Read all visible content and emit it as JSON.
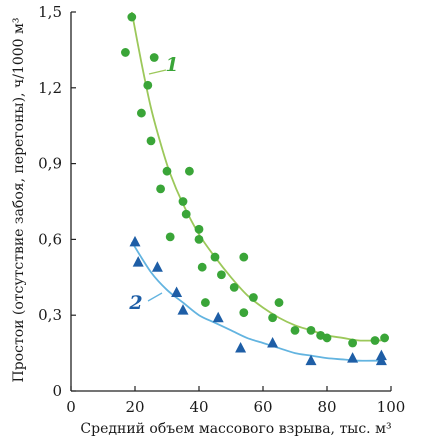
{
  "chart_data": {
    "type": "scatter",
    "title": "",
    "xlabel": "Средний объем массового взрыва, тыс. м³",
    "ylabel": "Простои (отсутствие забоя, перегоны), ч/1000 м³",
    "xlim": [
      0,
      100
    ],
    "ylim": [
      0,
      1.5
    ],
    "x_ticks": [
      "0",
      "20",
      "40",
      "60",
      "80",
      "100"
    ],
    "y_ticks": [
      "0",
      "0,3",
      "0,6",
      "0,9",
      "1,2",
      "1,5"
    ],
    "grid": false,
    "series": [
      {
        "name": "1",
        "marker": "circle",
        "color": "#3aa538",
        "curve_color": "#9cc85a",
        "points": [
          [
            17,
            1.34
          ],
          [
            19,
            1.48
          ],
          [
            22,
            1.1
          ],
          [
            24,
            1.21
          ],
          [
            25,
            0.99
          ],
          [
            26,
            1.32
          ],
          [
            28,
            0.8
          ],
          [
            30,
            0.87
          ],
          [
            31,
            0.61
          ],
          [
            35,
            0.75
          ],
          [
            36,
            0.7
          ],
          [
            37,
            0.87
          ],
          [
            40,
            0.64
          ],
          [
            40,
            0.6
          ],
          [
            41,
            0.49
          ],
          [
            42,
            0.35
          ],
          [
            45,
            0.53
          ],
          [
            47,
            0.46
          ],
          [
            51,
            0.41
          ],
          [
            54,
            0.31
          ],
          [
            54,
            0.53
          ],
          [
            57,
            0.37
          ],
          [
            63,
            0.29
          ],
          [
            65,
            0.35
          ],
          [
            70,
            0.24
          ],
          [
            75,
            0.24
          ],
          [
            78,
            0.22
          ],
          [
            80,
            0.21
          ],
          [
            88,
            0.19
          ],
          [
            95,
            0.2
          ],
          [
            98,
            0.21
          ]
        ],
        "trend": [
          [
            19,
            1.5
          ],
          [
            22,
            1.3
          ],
          [
            25,
            1.12
          ],
          [
            28,
            0.98
          ],
          [
            31,
            0.86
          ],
          [
            35,
            0.74
          ],
          [
            40,
            0.62
          ],
          [
            45,
            0.53
          ],
          [
            50,
            0.45
          ],
          [
            55,
            0.38
          ],
          [
            60,
            0.33
          ],
          [
            65,
            0.29
          ],
          [
            70,
            0.26
          ],
          [
            75,
            0.24
          ],
          [
            80,
            0.22
          ],
          [
            85,
            0.21
          ],
          [
            90,
            0.2
          ],
          [
            97,
            0.2
          ]
        ]
      },
      {
        "name": "2",
        "marker": "triangle",
        "color": "#1e5ea6",
        "curve_color": "#63b4e0",
        "points": [
          [
            20,
            0.59
          ],
          [
            21,
            0.51
          ],
          [
            27,
            0.49
          ],
          [
            33,
            0.39
          ],
          [
            35,
            0.32
          ],
          [
            46,
            0.29
          ],
          [
            53,
            0.17
          ],
          [
            63,
            0.19
          ],
          [
            75,
            0.12
          ],
          [
            88,
            0.13
          ],
          [
            97,
            0.14
          ],
          [
            97,
            0.12
          ]
        ],
        "trend": [
          [
            19,
            0.59
          ],
          [
            25,
            0.47
          ],
          [
            30,
            0.4
          ],
          [
            35,
            0.35
          ],
          [
            40,
            0.3
          ],
          [
            45,
            0.27
          ],
          [
            50,
            0.24
          ],
          [
            55,
            0.21
          ],
          [
            60,
            0.19
          ],
          [
            65,
            0.17
          ],
          [
            70,
            0.15
          ],
          [
            75,
            0.14
          ],
          [
            80,
            0.13
          ],
          [
            85,
            0.125
          ],
          [
            90,
            0.12
          ],
          [
            97,
            0.12
          ]
        ]
      }
    ]
  }
}
